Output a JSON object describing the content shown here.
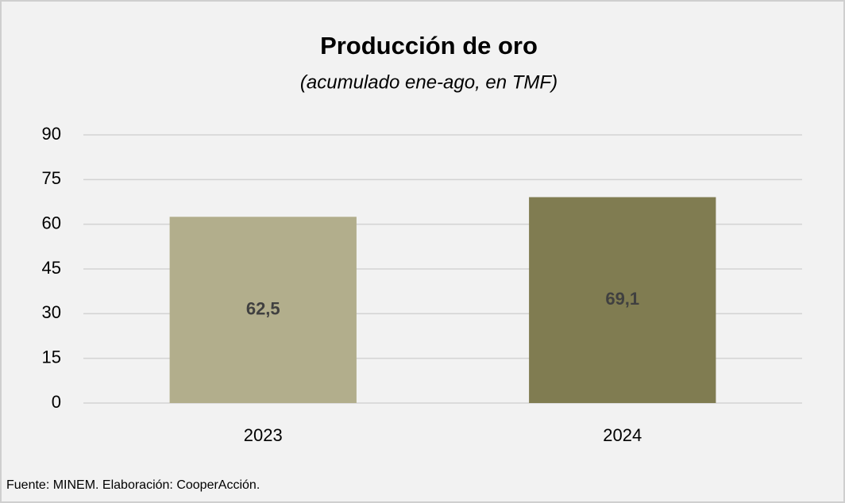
{
  "chart_data": {
    "type": "bar",
    "title": "Producción de oro",
    "subtitle": "(acumulado ene-ago, en TMF)",
    "categories": [
      "2023",
      "2024"
    ],
    "values": [
      62.5,
      69.1
    ],
    "value_labels": [
      "62,5",
      "69,1"
    ],
    "colors": [
      "#b2ae8c",
      "#807c51"
    ],
    "ylim": [
      0,
      90
    ],
    "yticks": [
      0,
      15,
      30,
      45,
      60,
      75,
      90
    ],
    "grid": true,
    "note": "Fuente: MINEM. Elaboración: CooperAcción."
  }
}
